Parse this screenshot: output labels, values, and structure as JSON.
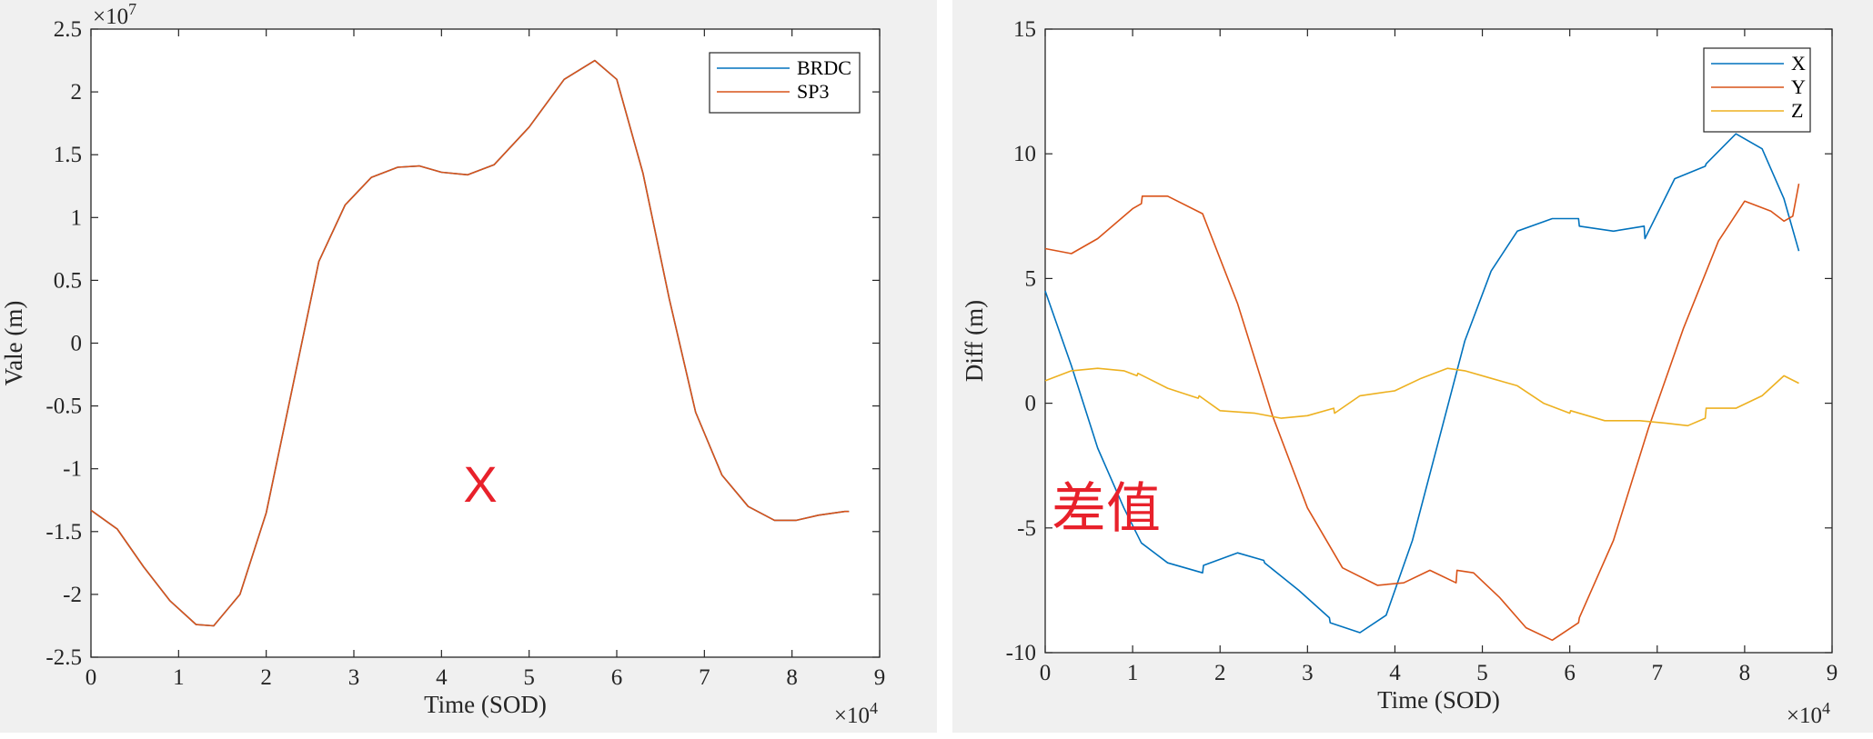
{
  "colors": {
    "blue": "#0072bd",
    "orange": "#d95319",
    "yellow": "#edb120",
    "annotation": "#e8212b",
    "background": "#f0f0f0"
  },
  "chart_data": [
    {
      "type": "line",
      "xlabel": "Time (SOD)",
      "ylabel": "Vale (m)",
      "xlim": [
        0,
        9
      ],
      "ylim": [
        -2.5,
        2.5
      ],
      "x_multiplier": "×10",
      "x_exponent": "4",
      "y_multiplier": "×10",
      "y_exponent": "7",
      "xticks": [
        "0",
        "1",
        "2",
        "3",
        "4",
        "5",
        "6",
        "7",
        "8",
        "9"
      ],
      "yticks": [
        "-2.5",
        "-2",
        "-1.5",
        "-1",
        "-0.5",
        "0",
        "0.5",
        "1",
        "1.5",
        "2",
        "2.5"
      ],
      "legend": [
        "BRDC",
        "SP3"
      ],
      "legend_position": "top-right",
      "annotation": "X",
      "series": [
        {
          "name": "BRDC",
          "color": "blue",
          "x": [
            0,
            0.3,
            0.6,
            0.9,
            1.2,
            1.4,
            1.7,
            2.0,
            2.3,
            2.6,
            2.9,
            3.2,
            3.5,
            3.75,
            4.0,
            4.3,
            4.6,
            5.0,
            5.4,
            5.75,
            6.0,
            6.3,
            6.6,
            6.9,
            7.2,
            7.5,
            7.8,
            8.05,
            8.3,
            8.6,
            8.65
          ],
          "y": [
            -1.33,
            -1.48,
            -1.78,
            -2.05,
            -2.24,
            -2.25,
            -2.0,
            -1.35,
            -0.35,
            0.65,
            1.1,
            1.32,
            1.4,
            1.41,
            1.36,
            1.34,
            1.42,
            1.72,
            2.1,
            2.25,
            2.1,
            1.35,
            0.35,
            -0.55,
            -1.05,
            -1.3,
            -1.41,
            -1.41,
            -1.37,
            -1.34,
            -1.34
          ]
        },
        {
          "name": "SP3",
          "color": "orange",
          "x": [
            0,
            0.3,
            0.6,
            0.9,
            1.2,
            1.4,
            1.7,
            2.0,
            2.3,
            2.6,
            2.9,
            3.2,
            3.5,
            3.75,
            4.0,
            4.3,
            4.6,
            5.0,
            5.4,
            5.75,
            6.0,
            6.3,
            6.6,
            6.9,
            7.2,
            7.5,
            7.8,
            8.05,
            8.3,
            8.6,
            8.65
          ],
          "y": [
            -1.33,
            -1.48,
            -1.78,
            -2.05,
            -2.24,
            -2.25,
            -2.0,
            -1.35,
            -0.35,
            0.65,
            1.1,
            1.32,
            1.4,
            1.41,
            1.36,
            1.34,
            1.42,
            1.72,
            2.1,
            2.25,
            2.1,
            1.35,
            0.35,
            -0.55,
            -1.05,
            -1.3,
            -1.41,
            -1.41,
            -1.37,
            -1.34,
            -1.34
          ]
        }
      ]
    },
    {
      "type": "line",
      "xlabel": "Time (SOD)",
      "ylabel": "Diff (m)",
      "xlim": [
        0,
        9
      ],
      "ylim": [
        -10,
        15
      ],
      "x_multiplier": "×10",
      "x_exponent": "4",
      "xticks": [
        "0",
        "1",
        "2",
        "3",
        "4",
        "5",
        "6",
        "7",
        "8",
        "9"
      ],
      "yticks": [
        "-10",
        "-5",
        "0",
        "5",
        "10",
        "15"
      ],
      "legend": [
        "X",
        "Y",
        "Z"
      ],
      "legend_position": "top-right",
      "annotation": "差值",
      "series": [
        {
          "name": "X",
          "color": "blue",
          "x": [
            0,
            0.3,
            0.6,
            0.9,
            1.1,
            1.4,
            1.8,
            1.81,
            2.2,
            2.5,
            2.51,
            2.9,
            3.25,
            3.26,
            3.6,
            3.9,
            4.2,
            4.5,
            4.8,
            5.1,
            5.4,
            5.8,
            6.1,
            6.11,
            6.5,
            6.85,
            6.86,
            7.2,
            7.55,
            7.56,
            7.9,
            8.2,
            8.45,
            8.62
          ],
          "y": [
            4.5,
            1.5,
            -1.8,
            -4.2,
            -5.6,
            -6.4,
            -6.8,
            -6.5,
            -6.0,
            -6.3,
            -6.4,
            -7.5,
            -8.6,
            -8.8,
            -9.2,
            -8.5,
            -5.5,
            -1.5,
            2.5,
            5.3,
            6.9,
            7.4,
            7.4,
            7.1,
            6.9,
            7.1,
            6.6,
            9.0,
            9.5,
            9.6,
            10.8,
            10.2,
            8.2,
            6.1
          ]
        },
        {
          "name": "Y",
          "color": "orange",
          "x": [
            0,
            0.3,
            0.6,
            1.0,
            1.1,
            1.11,
            1.4,
            1.8,
            2.2,
            2.6,
            3.0,
            3.4,
            3.8,
            4.1,
            4.4,
            4.7,
            4.71,
            4.9,
            5.2,
            5.5,
            5.8,
            6.1,
            6.11,
            6.5,
            6.9,
            7.3,
            7.7,
            8.0,
            8.3,
            8.45,
            8.55,
            8.62
          ],
          "y": [
            6.2,
            6.0,
            6.6,
            7.8,
            8.0,
            8.3,
            8.3,
            7.6,
            4.0,
            -0.5,
            -4.2,
            -6.6,
            -7.3,
            -7.2,
            -6.7,
            -7.2,
            -6.7,
            -6.8,
            -7.8,
            -9.0,
            -9.5,
            -8.8,
            -8.6,
            -5.5,
            -1.0,
            3.0,
            6.5,
            8.1,
            7.7,
            7.3,
            7.5,
            8.8
          ]
        },
        {
          "name": "Z",
          "color": "yellow",
          "x": [
            0,
            0.3,
            0.6,
            0.9,
            1.05,
            1.06,
            1.4,
            1.75,
            1.76,
            2.0,
            2.4,
            2.7,
            3.0,
            3.3,
            3.31,
            3.6,
            4.0,
            4.3,
            4.6,
            4.8,
            5.1,
            5.4,
            5.7,
            6.0,
            6.01,
            6.4,
            6.8,
            7.1,
            7.35,
            7.55,
            7.56,
            7.9,
            8.2,
            8.45,
            8.62
          ],
          "y": [
            0.9,
            1.3,
            1.4,
            1.3,
            1.1,
            1.2,
            0.6,
            0.2,
            0.3,
            -0.3,
            -0.4,
            -0.6,
            -0.5,
            -0.2,
            -0.4,
            0.3,
            0.5,
            1.0,
            1.4,
            1.3,
            1.0,
            0.7,
            0.0,
            -0.4,
            -0.3,
            -0.7,
            -0.7,
            -0.8,
            -0.9,
            -0.6,
            -0.2,
            -0.2,
            0.3,
            1.1,
            0.8
          ]
        }
      ]
    }
  ]
}
